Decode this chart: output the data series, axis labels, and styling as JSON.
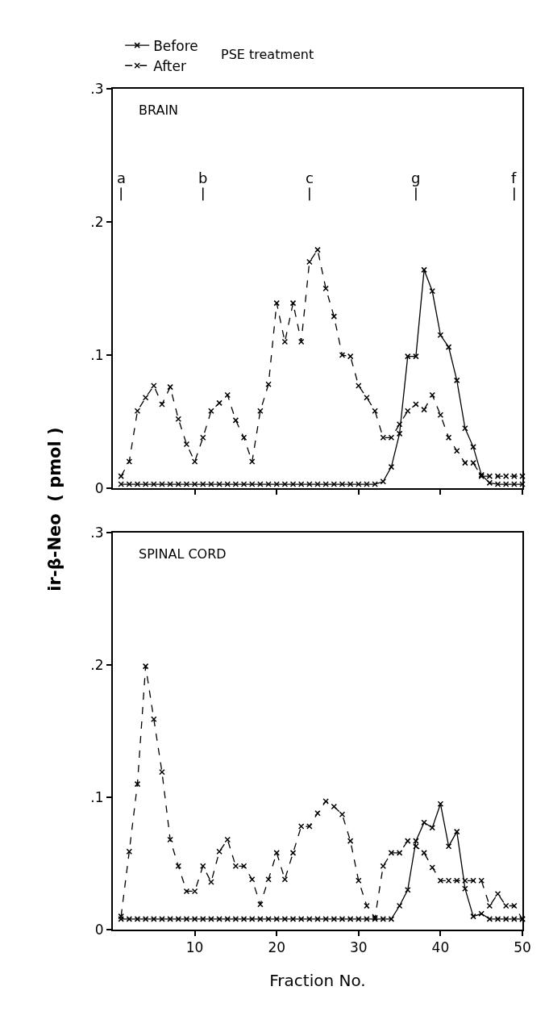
{
  "chart_data": [
    {
      "type": "line",
      "legend_title": "PSE treatment",
      "ylabel": "ir-β-Neo  ( pmol )",
      "annotations": [
        "BRAIN",
        {
          "text": "a",
          "x": 1
        },
        {
          "text": "b",
          "x": 11
        },
        {
          "text": "c",
          "x": 24
        },
        {
          "text": "g",
          "x": 37
        },
        {
          "text": "f",
          "x": 49
        }
      ],
      "x": [
        1,
        2,
        3,
        4,
        5,
        6,
        7,
        8,
        9,
        10,
        11,
        12,
        13,
        14,
        15,
        16,
        17,
        18,
        19,
        20,
        21,
        22,
        23,
        24,
        25,
        26,
        27,
        28,
        29,
        30,
        31,
        32,
        33,
        34,
        35,
        36,
        37,
        38,
        39,
        40,
        41,
        42,
        43,
        44,
        45,
        46,
        47,
        48,
        49,
        50
      ],
      "series": [
        {
          "name": "Before",
          "color": "#000000",
          "line_style": "solid",
          "values": [
            0.003,
            0.003,
            0.003,
            0.003,
            0.003,
            0.003,
            0.003,
            0.003,
            0.003,
            0.003,
            0.003,
            0.003,
            0.003,
            0.003,
            0.003,
            0.003,
            0.003,
            0.003,
            0.003,
            0.003,
            0.003,
            0.003,
            0.003,
            0.003,
            0.003,
            0.003,
            0.003,
            0.003,
            0.003,
            0.003,
            0.003,
            0.003,
            0.005,
            0.016,
            0.041,
            0.099,
            0.099,
            0.164,
            0.148,
            0.115,
            0.106,
            0.081,
            0.045,
            0.031,
            0.01,
            0.004,
            0.003,
            0.003,
            0.003,
            0.003
          ]
        },
        {
          "name": "After",
          "color": "#000000",
          "line_style": "dashed",
          "values": [
            0.009,
            0.02,
            0.058,
            0.068,
            0.077,
            0.063,
            0.076,
            0.052,
            0.033,
            0.02,
            0.038,
            0.058,
            0.064,
            0.07,
            0.051,
            0.038,
            0.02,
            0.058,
            0.078,
            0.139,
            0.11,
            0.139,
            0.11,
            0.17,
            0.179,
            0.15,
            0.129,
            0.1,
            0.099,
            0.077,
            0.068,
            0.058,
            0.038,
            0.038,
            0.048,
            0.058,
            0.063,
            0.059,
            0.07,
            0.055,
            0.038,
            0.028,
            0.019,
            0.019,
            0.009,
            0.009,
            0.009,
            0.009,
            0.009,
            0.009
          ]
        }
      ],
      "xlim": [
        0,
        50
      ],
      "xticks": [
        10,
        20,
        30,
        40,
        50
      ],
      "ylim": [
        0,
        0.3
      ],
      "yticks": [
        0,
        {
          "value": 0.1,
          "label": ".1"
        },
        {
          "value": 0.2,
          "label": ".2"
        },
        {
          "value": 0.3,
          "label": ".3"
        }
      ],
      "tick_labels": "y",
      "legend": "top left",
      "marker": "cross"
    },
    {
      "type": "line",
      "xlabel": "Fraction No.",
      "annotations": [
        "SPINAL CORD"
      ],
      "x": [
        1,
        2,
        3,
        4,
        5,
        6,
        7,
        8,
        9,
        10,
        11,
        12,
        13,
        14,
        15,
        16,
        17,
        18,
        19,
        20,
        21,
        22,
        23,
        24,
        25,
        26,
        27,
        28,
        29,
        30,
        31,
        32,
        33,
        34,
        35,
        36,
        37,
        38,
        39,
        40,
        41,
        42,
        43,
        44,
        45,
        46,
        47,
        48,
        49,
        50
      ],
      "series": [
        {
          "color": "#000000",
          "line_style": "solid",
          "values": [
            0.008,
            0.008,
            0.008,
            0.008,
            0.008,
            0.008,
            0.008,
            0.008,
            0.008,
            0.008,
            0.008,
            0.008,
            0.008,
            0.008,
            0.008,
            0.008,
            0.008,
            0.008,
            0.008,
            0.008,
            0.008,
            0.008,
            0.008,
            0.008,
            0.008,
            0.008,
            0.008,
            0.008,
            0.008,
            0.008,
            0.008,
            0.008,
            0.008,
            0.008,
            0.018,
            0.03,
            0.067,
            0.081,
            0.077,
            0.095,
            0.063,
            0.074,
            0.031,
            0.01,
            0.012,
            0.008,
            0.008,
            0.008,
            0.008,
            0.008
          ]
        },
        {
          "color": "#000000",
          "line_style": "dashed",
          "values": [
            0.01,
            0.059,
            0.11,
            0.199,
            0.159,
            0.119,
            0.068,
            0.048,
            0.029,
            0.029,
            0.048,
            0.036,
            0.059,
            0.068,
            0.048,
            0.048,
            0.038,
            0.019,
            0.038,
            0.058,
            0.038,
            0.058,
            0.078,
            0.078,
            0.088,
            0.097,
            0.093,
            0.087,
            0.067,
            0.037,
            0.018,
            0.009,
            0.048,
            0.058,
            0.058,
            0.067,
            0.063,
            0.058,
            0.047,
            0.037,
            0.037,
            0.037,
            0.037,
            0.037,
            0.037,
            0.018,
            0.027,
            0.018,
            0.018,
            0.008
          ]
        }
      ],
      "xlim": [
        0,
        50
      ],
      "xticks": [
        10,
        20,
        30,
        40,
        50
      ],
      "ylim": [
        0,
        0.3
      ],
      "yticks": [
        0,
        {
          "value": 0.1,
          "label": ".1"
        },
        {
          "value": 0.2,
          "label": ".2"
        },
        {
          "value": 0.3,
          "label": ".3"
        }
      ],
      "marker": "cross"
    }
  ]
}
